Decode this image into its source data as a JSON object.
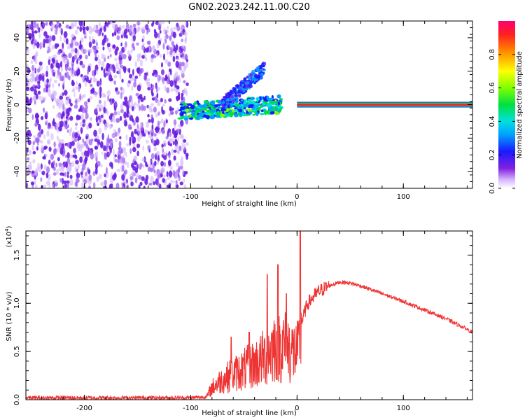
{
  "title": "GN02.2023.242.11.00.C20",
  "chart_data": [
    {
      "type": "heatmap",
      "name": "spectrogram",
      "xlabel": "Height of straight line (km)",
      "ylabel": "Frequency (Hz)",
      "xlim": [
        -255,
        165
      ],
      "ylim": [
        -50,
        50
      ],
      "xticks": [
        -200,
        -100,
        0,
        100
      ],
      "xtick_labels": [
        "-200",
        "-100",
        "0",
        "100"
      ],
      "yticks": [
        -40,
        -20,
        0,
        20,
        40
      ],
      "ytick_labels": [
        "-40",
        "-20",
        "0",
        "20",
        "40"
      ],
      "colorbar": {
        "label": "Normalized spectral amplitude",
        "range": [
          0,
          1
        ],
        "ticks": [
          0.0,
          0.2,
          0.4,
          0.6,
          0.8
        ],
        "tick_labels": [
          "0.0",
          "0.2",
          "0.4",
          "0.6",
          "0.8"
        ]
      },
      "regions": [
        {
          "description": "broadband noise",
          "x_range": [
            -255,
            -103
          ],
          "freq_range": [
            -50,
            50
          ],
          "amplitude_range": [
            0.05,
            0.25
          ]
        },
        {
          "description": "meteor head echo",
          "x_range": [
            -110,
            -15
          ],
          "freq_range": [
            -10,
            5
          ],
          "amplitude_range": [
            0.2,
            0.45
          ]
        },
        {
          "description": "rising trail branch",
          "x_range": [
            -70,
            -30
          ],
          "freq_range": [
            0,
            27
          ],
          "amplitude_range": [
            0.05,
            0.3
          ]
        },
        {
          "description": "constant carrier",
          "x_range": [
            0,
            165
          ],
          "freq_center": 0,
          "amplitude": 1.0
        }
      ]
    },
    {
      "type": "line",
      "name": "snr",
      "xlabel": "Height of straight line (km)",
      "ylabel": "SNR (10 * v/v)",
      "y_scale_label": "(x10^4)",
      "y_scale_base": "(x10",
      "y_scale_exp": "4",
      "y_scale_close": ")",
      "xlim": [
        -255,
        165
      ],
      "ylim": [
        0,
        1.75
      ],
      "xticks": [
        -200,
        -100,
        0,
        100
      ],
      "xtick_labels": [
        "-200",
        "-100",
        "0",
        "100"
      ],
      "yticks": [
        0.0,
        0.5,
        1.0,
        1.5
      ],
      "ytick_labels": [
        "0.0",
        "0.5",
        "1.0",
        "1.5"
      ],
      "series": [
        {
          "name": "SNR",
          "color": "#ee3333",
          "x": [
            -255,
            -200,
            -150,
            -100,
            -85,
            -80,
            -70,
            -60,
            -50,
            -40,
            -30,
            -20,
            -10,
            0,
            2,
            4,
            10,
            20,
            30,
            40,
            50,
            60,
            80,
            100,
            120,
            140,
            160,
            165
          ],
          "y": [
            0.02,
            0.02,
            0.02,
            0.02,
            0.03,
            0.12,
            0.2,
            0.25,
            0.3,
            0.35,
            0.42,
            0.55,
            0.52,
            0.45,
            0.5,
            0.8,
            1.0,
            1.12,
            1.18,
            1.22,
            1.21,
            1.18,
            1.1,
            1.02,
            0.93,
            0.84,
            0.73,
            0.7
          ]
        }
      ],
      "spikes": [
        {
          "x": -62,
          "y": 0.65
        },
        {
          "x": -45,
          "y": 0.7
        },
        {
          "x": -28,
          "y": 1.3
        },
        {
          "x": -18,
          "y": 1.4
        },
        {
          "x": -10,
          "y": 1.1
        },
        {
          "x": 3,
          "y": 1.75
        }
      ]
    }
  ],
  "colors": {
    "trace": "#ee3333",
    "noise": "#7a2fe8"
  }
}
